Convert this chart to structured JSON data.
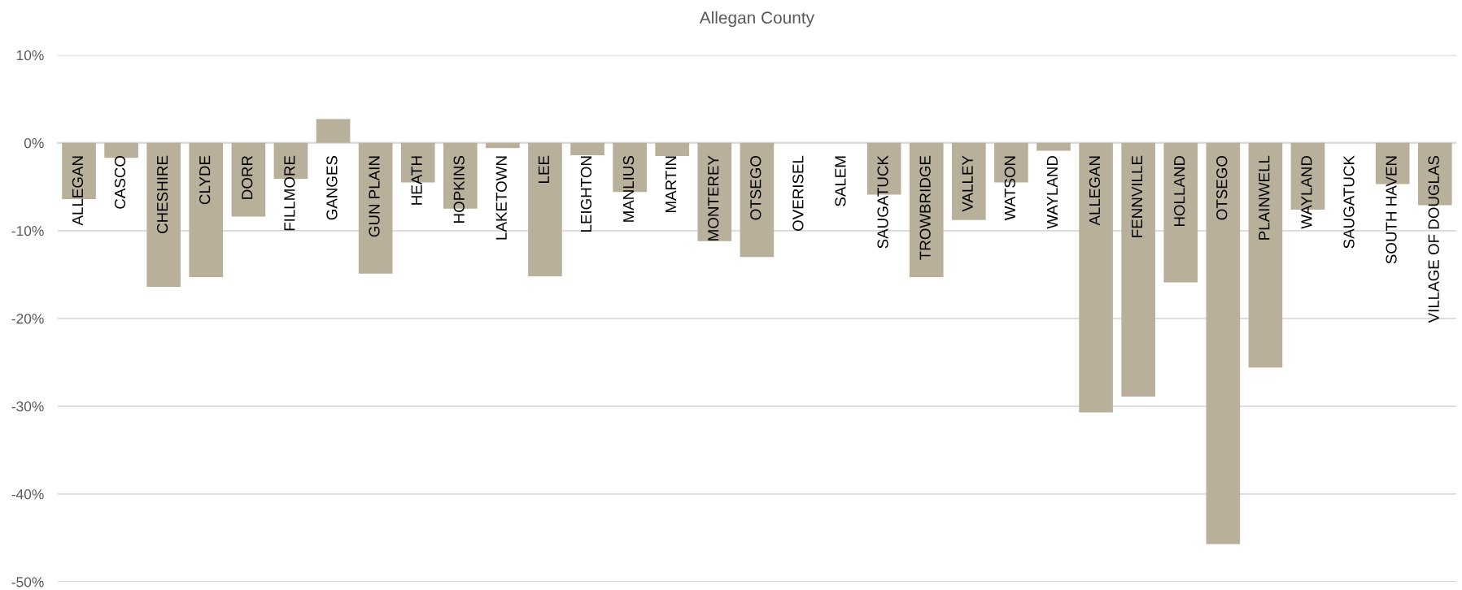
{
  "chart_data": {
    "type": "bar",
    "title": "Allegan County",
    "categories": [
      "ALLEGAN",
      "CASCO",
      "CHESHIRE",
      "CLYDE",
      "DORR",
      "FILLMORE",
      "GANGES",
      "GUN PLAIN",
      "HEATH",
      "HOPKINS",
      "LAKETOWN",
      "LEE",
      "LEIGHTON",
      "MANLIUS",
      "MARTIN",
      "MONTEREY",
      "OTSEGO",
      "OVERISEL",
      "SALEM",
      "SAUGATUCK",
      "TROWBRIDGE",
      "VALLEY",
      "WATSON",
      "WAYLAND",
      "ALLEGAN",
      "FENNVILLE",
      "HOLLAND",
      "OTSEGO",
      "PLAINWELL",
      "WAYLAND",
      "SAUGATUCK",
      "SOUTH HAVEN",
      "VILLAGE OF DOUGLAS"
    ],
    "values": [
      -6.4,
      -1.7,
      -16.4,
      -15.3,
      -8.4,
      -4.1,
      2.7,
      -14.9,
      -4.5,
      -7.5,
      -0.6,
      -15.2,
      -1.4,
      -5.6,
      -1.5,
      -11.2,
      -13.0,
      null,
      null,
      -5.9,
      -15.3,
      -8.8,
      -4.5,
      -0.9,
      -30.7,
      -28.9,
      -15.9,
      -45.7,
      -25.6,
      -7.6,
      null,
      -4.7,
      -7.1
    ],
    "color": "#b9b09b",
    "ylim": [
      -50,
      10
    ],
    "yticks": [
      {
        "value": -50,
        "label": "-50%"
      },
      {
        "value": -40,
        "label": "-40%"
      },
      {
        "value": -30,
        "label": "-30%"
      },
      {
        "value": -20,
        "label": "-20%"
      },
      {
        "value": -10,
        "label": "-10%"
      },
      {
        "value": 0,
        "label": "0%"
      },
      {
        "value": 10,
        "label": "10%"
      }
    ],
    "grid": "y"
  }
}
